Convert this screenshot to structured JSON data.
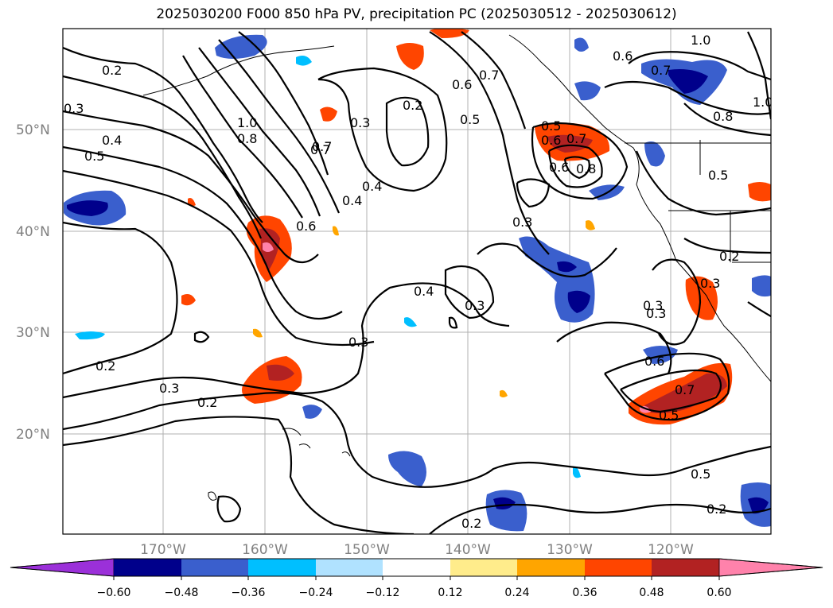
{
  "title": "2025030200 F000 850 hPa PV, precipitation PC (2025030512 - 2025030612)",
  "map": {
    "lat_labels": [
      "50°N",
      "40°N",
      "30°N",
      "20°N"
    ],
    "lon_labels": [
      "170°W",
      "160°W",
      "150°W",
      "140°W",
      "130°W",
      "120°W"
    ],
    "contour_labels": [
      "0.2",
      "0.3",
      "0.4",
      "0.5",
      "1.0",
      "0.8",
      "0.7",
      "0.6",
      "0.3",
      "0.4",
      "0.2",
      "0.7",
      "0.6",
      "0.5",
      "0.3",
      "0.6",
      "0.7",
      "0.8",
      "0.7",
      "0.6",
      "0.5",
      "0.4",
      "0.3",
      "0.3",
      "0.3",
      "0.2",
      "0.2",
      "0.4",
      "0.3",
      "0.3",
      "0.6",
      "0.7",
      "0.5",
      "0.5",
      "0.2",
      "0.2",
      "1.0",
      "0.6",
      "0.7",
      "0.8",
      "1.0",
      "0.5",
      "0.2",
      "0.3"
    ]
  },
  "colorbar": {
    "colors": [
      "#9b30d9",
      "#00008b",
      "#3a5fcd",
      "#00bfff",
      "#b0e2ff",
      "#ffffff",
      "#ffec8b",
      "#ffa500",
      "#ff4500",
      "#b22222",
      "#ff82ab"
    ],
    "tick_labels": [
      "−0.60",
      "−0.48",
      "−0.36",
      "−0.24",
      "−0.12",
      "0.12",
      "0.24",
      "0.36",
      "0.48",
      "0.60"
    ]
  }
}
